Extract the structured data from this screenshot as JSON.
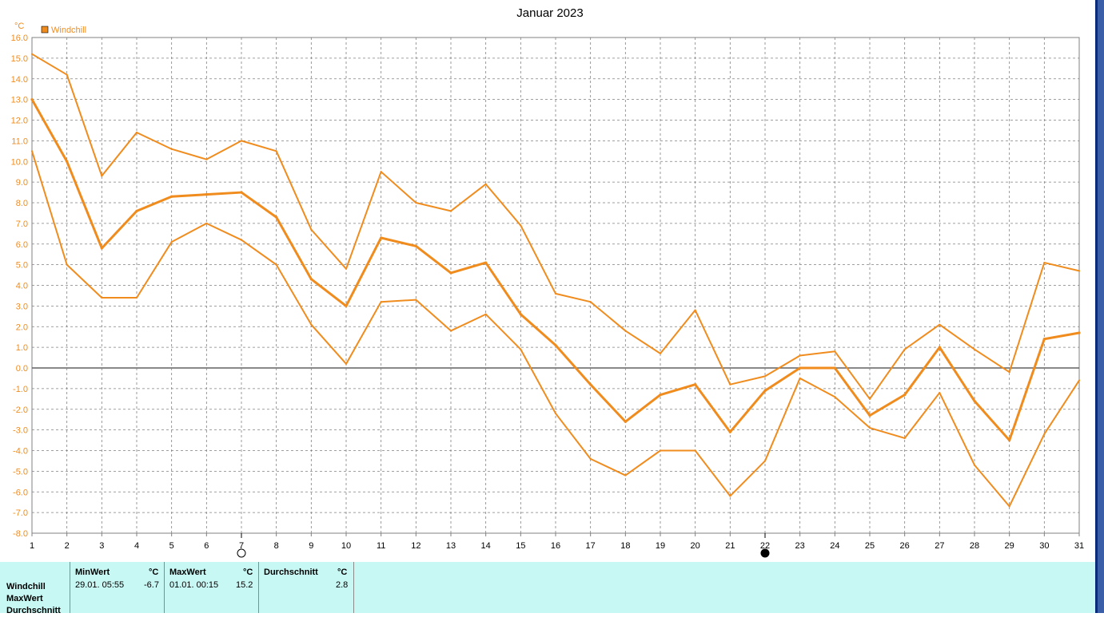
{
  "chart_data": {
    "type": "line",
    "title": "Januar 2023",
    "y_unit": "°C",
    "legend": {
      "label": "Windchill",
      "color": "#f08c1e",
      "placement": "top-left"
    },
    "x": [
      1,
      2,
      3,
      4,
      5,
      6,
      7,
      8,
      9,
      10,
      11,
      12,
      13,
      14,
      15,
      16,
      17,
      18,
      19,
      20,
      21,
      22,
      23,
      24,
      25,
      26,
      27,
      28,
      29,
      30,
      31
    ],
    "x_ticks": [
      "1",
      "2",
      "3",
      "4",
      "5",
      "6",
      "7",
      "8",
      "9",
      "10",
      "11",
      "12",
      "13",
      "14",
      "15",
      "16",
      "17",
      "18",
      "19",
      "20",
      "21",
      "22",
      "23",
      "24",
      "25",
      "26",
      "27",
      "28",
      "29",
      "30",
      "31"
    ],
    "ylim": [
      -8.0,
      16.0
    ],
    "y_ticks": [
      "16.0",
      "15.0",
      "14.0",
      "13.0",
      "12.0",
      "11.0",
      "10.0",
      "9.0",
      "8.0",
      "7.0",
      "6.0",
      "5.0",
      "4.0",
      "3.0",
      "2.0",
      "1.0",
      "0.0",
      "-1.0",
      "-2.0",
      "-3.0",
      "-4.0",
      "-5.0",
      "-6.0",
      "-7.0",
      "-8.0"
    ],
    "grid": true,
    "series": [
      {
        "role": "max",
        "values": [
          15.2,
          14.2,
          9.3,
          11.4,
          10.6,
          10.1,
          11.0,
          10.5,
          6.7,
          4.8,
          9.5,
          8.0,
          7.6,
          8.9,
          6.9,
          3.6,
          3.2,
          1.8,
          0.7,
          2.8,
          -0.8,
          -0.4,
          0.6,
          0.8,
          -1.5,
          0.9,
          2.1,
          0.9,
          -0.2,
          5.1,
          4.7
        ]
      },
      {
        "role": "avg",
        "values": [
          13.0,
          10.0,
          5.8,
          7.6,
          8.3,
          8.4,
          8.5,
          7.3,
          4.3,
          3.0,
          6.3,
          5.9,
          4.6,
          5.1,
          2.6,
          1.1,
          -0.8,
          -2.6,
          -1.3,
          -0.8,
          -3.1,
          -1.1,
          0.0,
          0.0,
          -2.3,
          -1.3,
          1.0,
          -1.6,
          -3.5,
          1.4,
          1.7
        ]
      },
      {
        "role": "min",
        "values": [
          10.5,
          5.0,
          3.4,
          3.4,
          6.1,
          7.0,
          6.2,
          5.0,
          2.1,
          0.2,
          3.2,
          3.3,
          1.8,
          2.6,
          0.9,
          -2.2,
          -4.4,
          -5.2,
          -4.0,
          -4.0,
          -6.2,
          -4.5,
          -0.5,
          -1.4,
          -2.9,
          -3.4,
          -1.2,
          -4.7,
          -6.7,
          -3.2,
          -0.6
        ]
      }
    ],
    "moon_markers": [
      {
        "x": 7,
        "phase": "full"
      },
      {
        "x": 22,
        "phase": "new"
      }
    ],
    "colors": {
      "line": "#f08c1e",
      "tick_text": "#f08c1e",
      "grid": "#808080",
      "zero_line": "#606060",
      "axis": "#808080"
    }
  },
  "stats": {
    "row_labels": [
      "Windchill",
      "MaxWert",
      "Durchschnitt"
    ],
    "min": {
      "header": "MinWert",
      "unit": "°C",
      "time": "29.01.  05:55",
      "value": "-6.7"
    },
    "max": {
      "header": "MaxWert",
      "unit": "°C",
      "time": "01.01.  00:15",
      "value": "15.2"
    },
    "avg": {
      "header": "Durchschnitt",
      "unit": "°C",
      "value": "2.8"
    }
  }
}
